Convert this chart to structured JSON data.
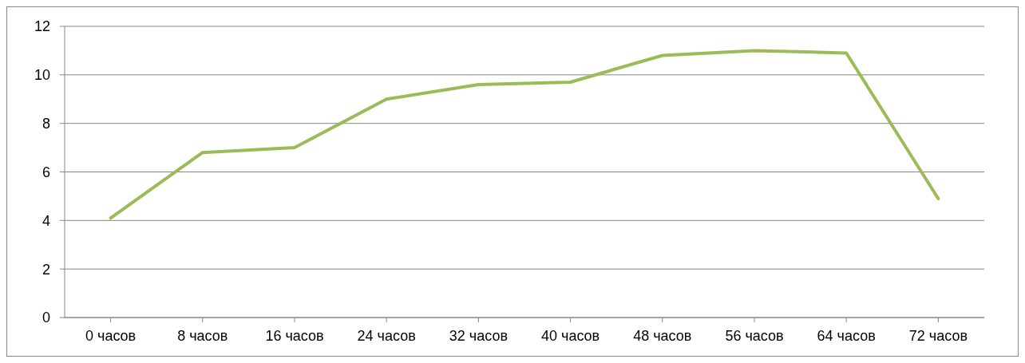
{
  "chart_data": {
    "type": "line",
    "categories": [
      "0  часов",
      "8 часов",
      "16 часов",
      "24 часов",
      "32 часов",
      "40 часов",
      "48 часов",
      "56 часов",
      "64 часов",
      "72 часов"
    ],
    "series": [
      {
        "color": "#9bbb59",
        "values": [
          4.1,
          6.8,
          7.0,
          9.0,
          9.6,
          9.7,
          10.8,
          11.0,
          10.9,
          4.9
        ]
      }
    ],
    "ylim": [
      0,
      12
    ],
    "yticks": [
      0,
      2,
      4,
      6,
      8,
      10,
      12
    ],
    "grid": "y",
    "legend": false,
    "marker": "none",
    "line_style": "solid"
  }
}
